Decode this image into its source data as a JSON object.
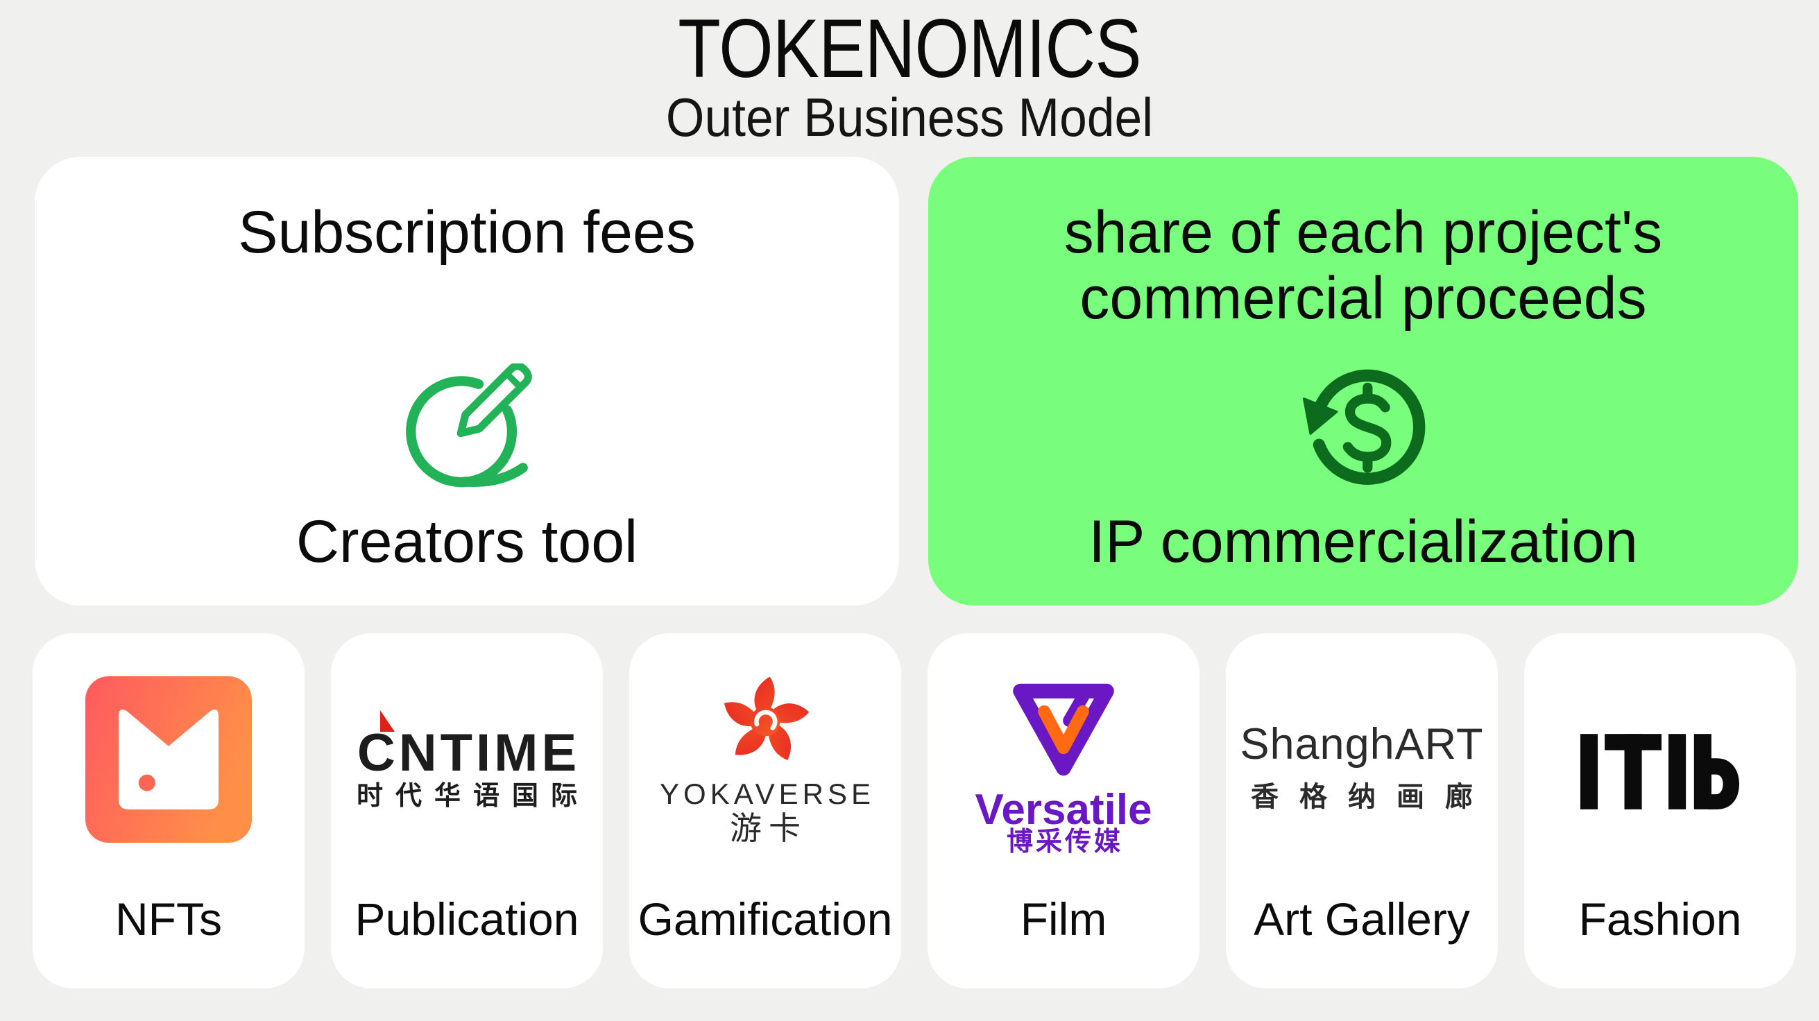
{
  "slide": {
    "title": "TOKENOMICS",
    "subtitle": "Outer Business Model"
  },
  "revenue_streams": [
    {
      "heading_lines": [
        "Subscription fees"
      ],
      "icon": "creator-pen-circle-icon",
      "label": "Creators tool",
      "background": "#ffffff",
      "icon_color": "#22b358"
    },
    {
      "heading_lines": [
        "share of each project's",
        "commercial proceeds"
      ],
      "icon": "dollar-refresh-icon",
      "label": "IP commercialization",
      "background": "#78fd7c",
      "icon_color": "#0d6b1d"
    }
  ],
  "verticals": [
    {
      "label": "NFTs",
      "logo": {
        "name": "nft-platform-logo",
        "colors": [
          "#ff5a5f",
          "#ff8f48"
        ]
      }
    },
    {
      "label": "Publication",
      "logo": {
        "name": "cntime-logo",
        "wordmark": "CNTIME",
        "subtext": "时代华语国际",
        "accent_color": "#e0201b"
      }
    },
    {
      "label": "Gamification",
      "logo": {
        "name": "yokaverse-logo",
        "wordmark": "YOKAVERSE",
        "subtext": "游卡",
        "colors": [
          "#e3191f",
          "#ff7b2c"
        ]
      }
    },
    {
      "label": "Film",
      "logo": {
        "name": "versatile-logo",
        "wordmark": "Versatile",
        "subtext": "博采传媒",
        "colors": [
          "#6a17c4",
          "#ff6a13"
        ]
      }
    },
    {
      "label": "Art Gallery",
      "logo": {
        "name": "shanghart-logo",
        "wordmark": "ShanghART",
        "subtext": "香格纳画廊"
      }
    },
    {
      "label": "Fashion",
      "logo": {
        "name": "itib-logo",
        "wordmark": "ITIb"
      }
    }
  ],
  "theme": {
    "page_background": "#f0f1ef",
    "card_background": "#ffffff",
    "highlight_background": "#78fd7c",
    "text_color": "#0b0b0b"
  }
}
